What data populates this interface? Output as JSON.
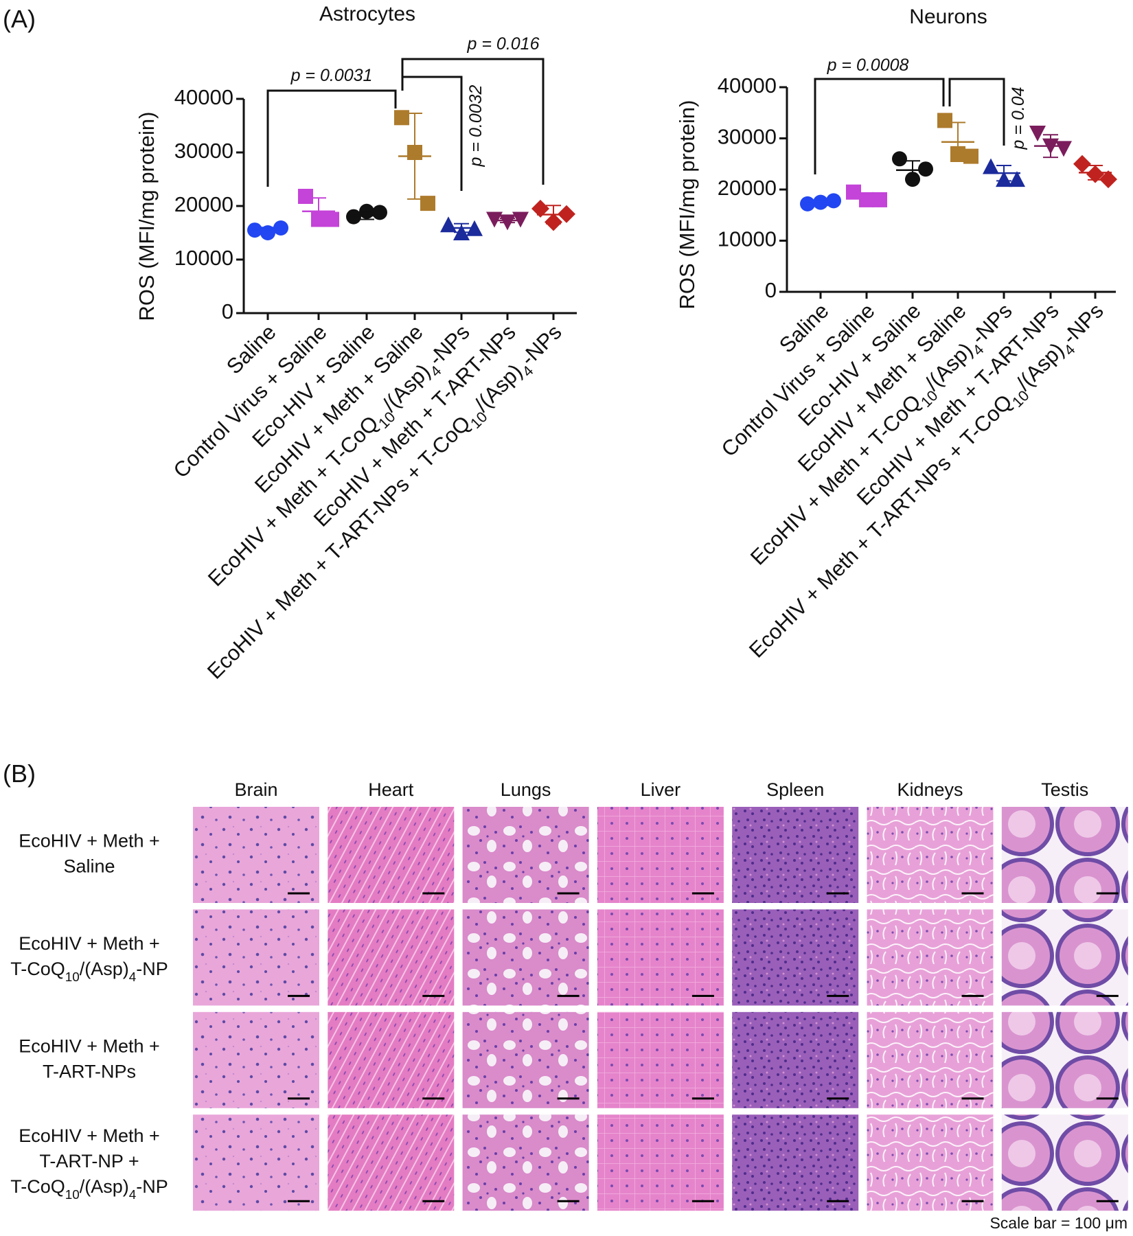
{
  "panel_labels": [
    "(A)",
    "(B)"
  ],
  "chart_data": [
    {
      "type": "dot",
      "title": "Astrocytes",
      "y_label": "ROS (MFI/mg protein)",
      "categories": [
        "Saline",
        "Control Virus + Saline",
        "Eco-HIV + Saline",
        "EcoHIV + Meth + Saline",
        "EcoHIV + Meth + T-CoQ10/(Asp)4-NPs",
        "EcoHIV + Meth + T-ART-NPs",
        "EcoHIV + Meth + T-ART-NPs + T-CoQ10/(Asp)4-NPs"
      ],
      "points": [
        [
          15500,
          15000,
          15900
        ],
        [
          21800,
          17500,
          17500
        ],
        [
          18000,
          19000,
          18800
        ],
        [
          36500,
          30000,
          20500
        ],
        [
          16500,
          15000,
          15800
        ],
        [
          17500,
          17000,
          17500
        ],
        [
          19500,
          17000,
          18500
        ]
      ],
      "means": [
        15600,
        19000,
        18200,
        29300,
        15900,
        17300,
        18400
      ],
      "sds": [
        400,
        2500,
        700,
        8000,
        800,
        400,
        1700
      ],
      "colors": [
        "#2146f2",
        "#c443d8",
        "#111111",
        "#ad7b2c",
        "#1b2b9c",
        "#7b1d5c",
        "#c0231f"
      ],
      "markers": [
        "circle",
        "square",
        "circle",
        "square",
        "triangle",
        "triangle-down",
        "diamond"
      ],
      "ylim": [
        0,
        40000
      ],
      "yticks": [
        0,
        10000,
        20000,
        30000,
        40000
      ],
      "brackets": [
        {
          "label": "p = 0.0031",
          "between": [
            "Saline",
            "EcoHIV + Meth + Saline"
          ]
        },
        {
          "label": "p = 0.0032",
          "between": [
            "EcoHIV + Meth + Saline",
            "EcoHIV + Meth + T-CoQ10/(Asp)4-NPs"
          ]
        },
        {
          "label": "p = 0.016",
          "between": [
            "EcoHIV + Meth + Saline",
            "EcoHIV + Meth + T-ART-NPs + T-CoQ10/(Asp)4-NPs"
          ]
        }
      ]
    },
    {
      "type": "dot",
      "title": "Neurons",
      "y_label": "ROS (MFI/mg protein)",
      "categories": [
        "Saline",
        "Control Virus + Saline",
        "Eco-HIV + Saline",
        "EcoHIV + Meth + Saline",
        "EcoHIV + Meth + T-CoQ10/(Asp)4-NPs",
        "EcoHIV + Meth + T-ART-NPs",
        "EcoHIV + Meth + T-ART-NPs + T-CoQ10/(Asp)4-NPs"
      ],
      "points": [
        [
          17200,
          17500,
          17800
        ],
        [
          19500,
          18000,
          18000
        ],
        [
          26000,
          22000,
          24000
        ],
        [
          33500,
          27000,
          26500
        ],
        [
          24500,
          22000,
          22000
        ],
        [
          31000,
          28500,
          28000
        ],
        [
          25000,
          23000,
          22000
        ]
      ],
      "means": [
        17300,
        18300,
        23800,
        29300,
        23200,
        28500,
        23300
      ],
      "sds": [
        400,
        800,
        1800,
        3800,
        1500,
        2200,
        1400
      ],
      "colors": [
        "#2146f2",
        "#c443d8",
        "#111111",
        "#ad7b2c",
        "#1b2b9c",
        "#7b1d5c",
        "#c0231f"
      ],
      "markers": [
        "circle",
        "square",
        "circle",
        "square",
        "triangle",
        "triangle-down",
        "diamond"
      ],
      "ylim": [
        0,
        40000
      ],
      "yticks": [
        0,
        10000,
        20000,
        30000,
        40000
      ],
      "brackets": [
        {
          "label": "p = 0.0008",
          "between": [
            "Saline",
            "EcoHIV + Meth + Saline"
          ]
        },
        {
          "label": "p = 0.04",
          "between": [
            "EcoHIV + Meth + Saline",
            "EcoHIV + Meth + T-CoQ10/(Asp)4-NPs"
          ]
        }
      ]
    }
  ],
  "histology": {
    "columns": [
      "Brain",
      "Heart",
      "Lungs",
      "Liver",
      "Spleen",
      "Kidneys",
      "Testis"
    ],
    "rows": [
      [
        "EcoHIV + Meth +",
        "Saline"
      ],
      [
        "EcoHIV + Meth +",
        "T-CoQ10/(Asp)4-NP"
      ],
      [
        "EcoHIV + Meth +",
        "T-ART-NPs"
      ],
      [
        "EcoHIV + Meth +",
        "T-ART-NP +",
        "T-CoQ10/(Asp)4-NP"
      ]
    ],
    "scale_bar": "Scale bar = 100 μm"
  }
}
